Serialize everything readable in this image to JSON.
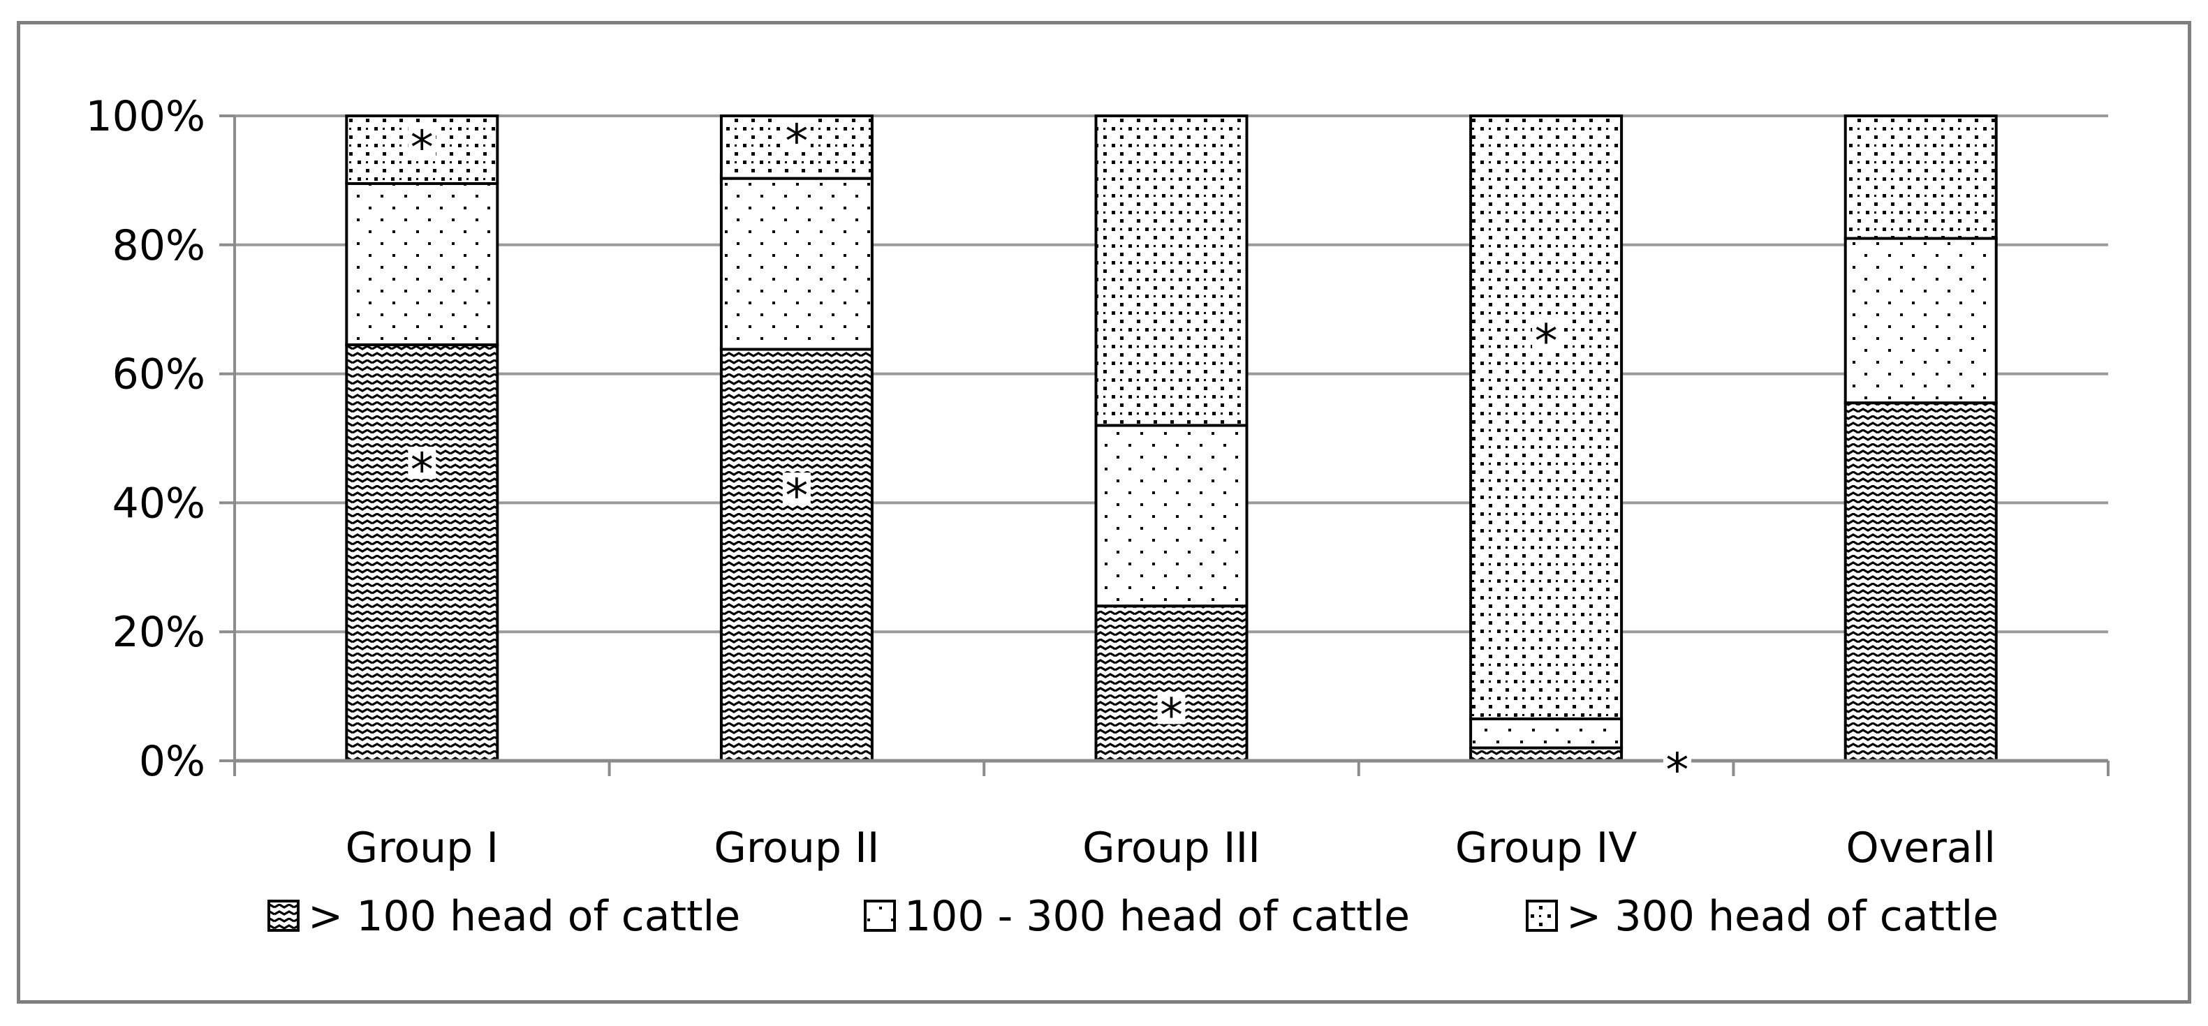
{
  "chart_data": {
    "type": "bar",
    "stacked": true,
    "percent": true,
    "categories": [
      "Group I",
      "Group II",
      "Group III",
      "Group IV",
      "Overall"
    ],
    "series": [
      {
        "name": "> 100 head of cattle",
        "pattern": "wave",
        "values": [
          64.5,
          63.8,
          24,
          2,
          55.5
        ]
      },
      {
        "name": "100 - 300 head of cattle",
        "pattern": "dots",
        "values": [
          25,
          26.5,
          28,
          4.5,
          25.5
        ]
      },
      {
        "name": "> 300 head of cattle",
        "pattern": "checker",
        "values": [
          10.5,
          9.7,
          48,
          93.5,
          19
        ]
      }
    ],
    "yticks": [
      "0%",
      "20%",
      "40%",
      "60%",
      "80%",
      "100%"
    ],
    "ylim": [
      0,
      100
    ],
    "grid": true,
    "legend_position": "bottom",
    "markers": [
      {
        "text": "*",
        "category": 0,
        "y": 95
      },
      {
        "text": "*",
        "category": 0,
        "y": 45
      },
      {
        "text": "*",
        "category": 1,
        "y": 96
      },
      {
        "text": "*",
        "category": 1,
        "y": 41
      },
      {
        "text": "*",
        "category": 2,
        "y": 7
      },
      {
        "text": "*",
        "category": 3,
        "y": 65
      },
      {
        "text": "*",
        "category": 3,
        "y": -1.5,
        "offset": 0.35
      }
    ],
    "colors": {
      "grid": "#9a9a9a",
      "axis": "#8c8c8c",
      "bar_edge": "#000000",
      "frame": "#7f7f7f"
    }
  }
}
